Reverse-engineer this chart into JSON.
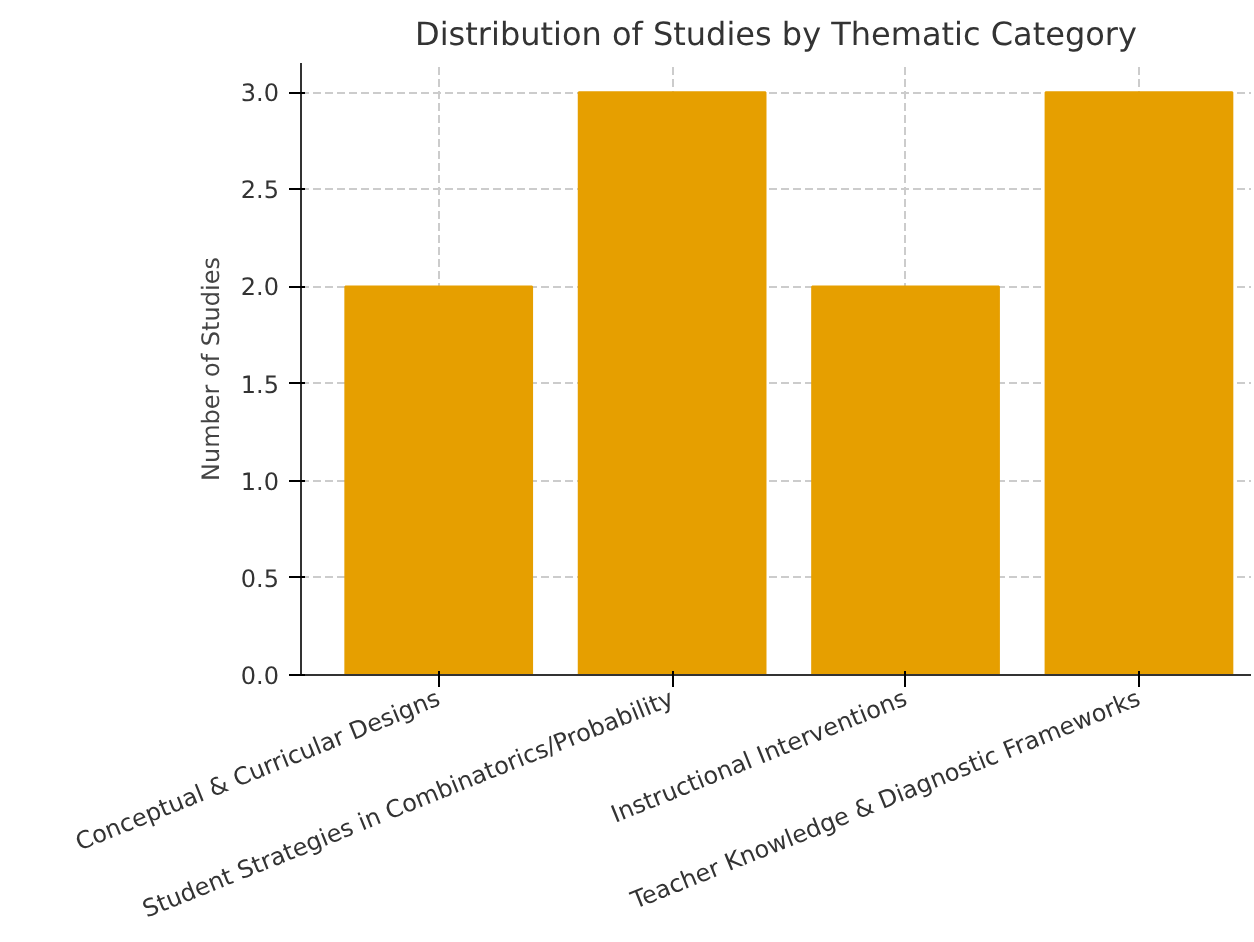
{
  "chart_data": {
    "type": "bar",
    "title": "Distribution of Studies by Thematic Category",
    "ylabel": "Number of Studies",
    "categories": [
      "Conceptual & Curricular Designs",
      "Student Strategies in Combinatorics/Probability",
      "Instructional Interventions",
      "Teacher Knowledge & Diagnostic Frameworks"
    ],
    "values": [
      2,
      3,
      2,
      3
    ],
    "color": "#e69f00",
    "ylim": [
      0,
      3.15
    ],
    "yticks": [
      {
        "value": 0,
        "label": "0.0"
      },
      {
        "value": 0.5,
        "label": "0.5"
      },
      {
        "value": 1,
        "label": "1.0"
      },
      {
        "value": 1.5,
        "label": "1.5"
      },
      {
        "value": 2,
        "label": "2.0"
      },
      {
        "value": 2.5,
        "label": "2.5"
      },
      {
        "value": 3,
        "label": "3.0"
      }
    ],
    "grid": true
  }
}
